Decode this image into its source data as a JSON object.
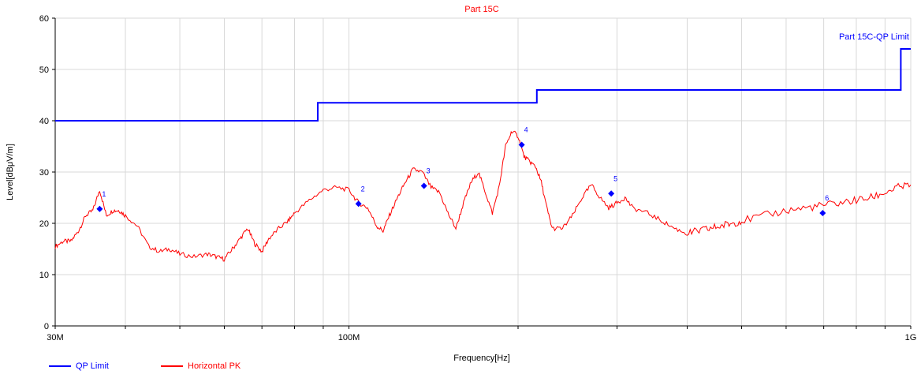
{
  "chart_data": {
    "type": "line",
    "title": "Part 15C",
    "xlabel": "Frequency[Hz]",
    "ylabel": "Level[dBμV/m]",
    "x_scale": "log",
    "xlim": [
      30000000,
      1000000000
    ],
    "ylim": [
      0,
      60
    ],
    "x_ticks": [
      {
        "value": 30000000,
        "label": "30M"
      },
      {
        "value": 100000000,
        "label": "100M"
      },
      {
        "value": 1000000000,
        "label": "1G"
      }
    ],
    "y_ticks": [
      0,
      10,
      20,
      30,
      40,
      50,
      60
    ],
    "grid": true,
    "legend_position": "bottom-left",
    "limit_label": "Part 15C-QP Limit",
    "series": [
      {
        "name": "QP Limit",
        "color": "#0000ff",
        "x": [
          30000000,
          88000000,
          88000000,
          216000000,
          216000000,
          960000000,
          960000000,
          1000000000
        ],
        "y": [
          40,
          40,
          43.5,
          43.5,
          46,
          46,
          54,
          54
        ]
      },
      {
        "name": "Horizontal PK",
        "color": "#ff0000",
        "x": [
          30000000,
          31000000,
          32000000,
          33000000,
          34000000,
          35000000,
          36000000,
          37000000,
          38000000,
          39000000,
          40000000,
          42000000,
          44000000,
          46000000,
          48000000,
          50000000,
          53000000,
          56000000,
          58000000,
          60000000,
          62000000,
          64000000,
          66000000,
          68000000,
          70000000,
          72000000,
          75000000,
          78000000,
          80000000,
          85000000,
          90000000,
          95000000,
          100000000,
          104000000,
          108000000,
          112000000,
          115000000,
          118000000,
          122000000,
          126000000,
          130000000,
          135000000,
          140000000,
          145000000,
          150000000,
          155000000,
          160000000,
          165000000,
          170000000,
          175000000,
          180000000,
          185000000,
          190000000,
          195000000,
          200000000,
          205000000,
          210000000,
          215000000,
          220000000,
          225000000,
          230000000,
          240000000,
          250000000,
          260000000,
          270000000,
          280000000,
          290000000,
          300000000,
          310000000,
          320000000,
          340000000,
          360000000,
          380000000,
          400000000,
          420000000,
          440000000,
          460000000,
          480000000,
          500000000,
          550000000,
          600000000,
          650000000,
          700000000,
          750000000,
          800000000,
          850000000,
          900000000,
          950000000,
          1000000000
        ],
        "y": [
          15.5,
          16.5,
          16.5,
          18.5,
          21.5,
          22.5,
          26.5,
          21.5,
          22.5,
          22.5,
          21.5,
          19.5,
          15.5,
          14.5,
          15,
          14,
          13.5,
          14,
          13.5,
          13,
          15,
          17,
          19,
          16,
          14.5,
          17,
          19,
          20.5,
          22,
          24.5,
          26.5,
          27,
          26.5,
          24,
          23,
          19.5,
          18.5,
          21.5,
          25,
          28,
          30.5,
          30,
          27,
          26,
          22,
          19,
          24,
          28,
          30,
          26,
          22,
          27,
          35,
          38,
          37,
          33,
          32,
          31,
          28,
          23,
          19,
          19,
          21.5,
          25,
          27.5,
          25,
          23,
          24,
          25,
          23,
          22,
          20.5,
          19,
          18,
          18.5,
          19,
          19.5,
          20,
          20.5,
          21.5,
          22.5,
          23,
          23.5,
          24,
          24.5,
          25,
          26,
          27,
          27.5
        ]
      }
    ],
    "markers": [
      {
        "label": "1",
        "x": 36000000,
        "y": 22.8
      },
      {
        "label": "2",
        "x": 104000000,
        "y": 23.8
      },
      {
        "label": "3",
        "x": 136000000,
        "y": 27.3
      },
      {
        "label": "4",
        "x": 203000000,
        "y": 35.3
      },
      {
        "label": "5",
        "x": 293000000,
        "y": 25.8
      },
      {
        "label": "6",
        "x": 697000000,
        "y": 22.0
      }
    ]
  },
  "legend": {
    "qp_limit_label": "QP Limit",
    "horizontal_pk_label": "Horizontal PK"
  }
}
